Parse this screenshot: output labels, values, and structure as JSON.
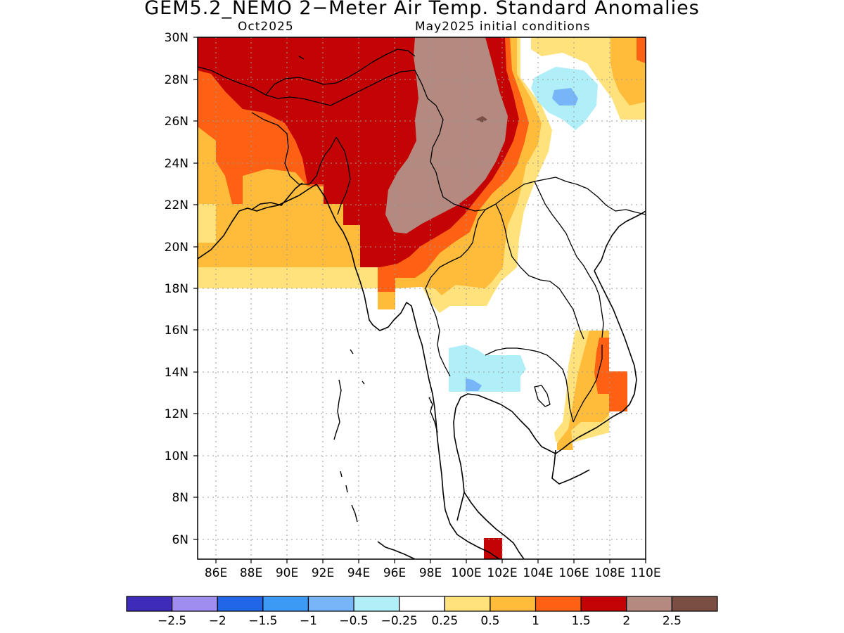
{
  "title": "GEM5.2_NEMO 2−Meter Air Temp. Standard Anomalies",
  "subtitle_left": "Oct2025",
  "subtitle_right": "May2025 initial conditions",
  "map": {
    "lat_ticks": [
      "30N",
      "28N",
      "26N",
      "24N",
      "22N",
      "20N",
      "18N",
      "16N",
      "14N",
      "12N",
      "10N",
      "8N",
      "6N"
    ],
    "lon_ticks": [
      "86E",
      "88E",
      "90E",
      "92E",
      "94E",
      "96E",
      "98E",
      "100E",
      "102E",
      "104E",
      "106E",
      "108E",
      "110E"
    ]
  },
  "colorbar": {
    "colors": [
      "#3e2bb8",
      "#a08df0",
      "#2266e8",
      "#3d9af4",
      "#78b4f8",
      "#b0eef8",
      "#ffffff",
      "#ffe27c",
      "#ffbb3a",
      "#ff6114",
      "#c40404",
      "#b48a80",
      "#7a4e42"
    ],
    "labels": [
      "−2.5",
      "−2",
      "−1.5",
      "−1",
      "−0.5",
      "−0.25",
      "0.25",
      "0.5",
      "1",
      "1.5",
      "2",
      "2.5"
    ]
  }
}
